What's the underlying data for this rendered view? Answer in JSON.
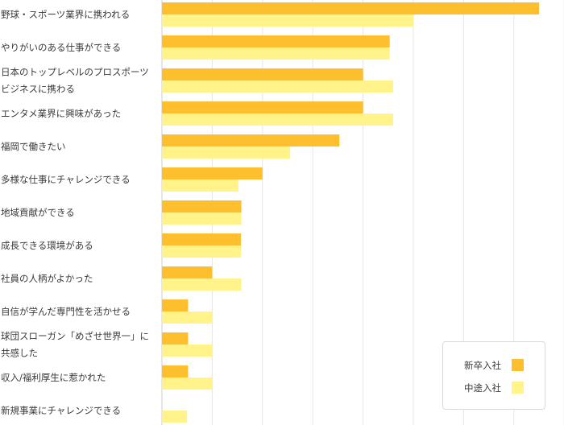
{
  "chart_data": {
    "type": "bar",
    "orientation": "horizontal",
    "categories": [
      [
        "野球・スポーツ業界に携われる"
      ],
      [
        "やりがいのある仕事ができる"
      ],
      [
        "日本のトップレベルのプロスポーツ",
        "ビジネスに携わる"
      ],
      [
        "エンタメ業界に興味があった"
      ],
      [
        "福岡で働きたい"
      ],
      [
        "多様な仕事にチャレンジできる"
      ],
      [
        "地域貢献ができる"
      ],
      [
        "成長できる環境がある"
      ],
      [
        "社員の人柄がよかった"
      ],
      [
        "自信が学んだ専門性を活かせる"
      ],
      [
        "球団スローガン「めざせ世界一」に",
        "共感した"
      ],
      [
        "収入/福利厚生に惹かれた"
      ],
      [
        "新規事業にチャレンジできる"
      ]
    ],
    "series": [
      {
        "name": "新卒入社",
        "color": "#fdbf2d",
        "values": [
          75,
          45.3,
          40,
          40,
          35.3,
          20,
          15.8,
          15.7,
          10,
          5.2,
          5.2,
          5.2,
          0
        ]
      },
      {
        "name": "中途入社",
        "color": "#fff38a",
        "values": [
          50,
          45.3,
          46,
          46,
          25.5,
          15.2,
          15.8,
          15.7,
          15.8,
          10,
          10,
          10,
          5
        ]
      }
    ],
    "xlim": [
      0,
      80
    ],
    "grid": true,
    "legend": "bottom-right"
  }
}
